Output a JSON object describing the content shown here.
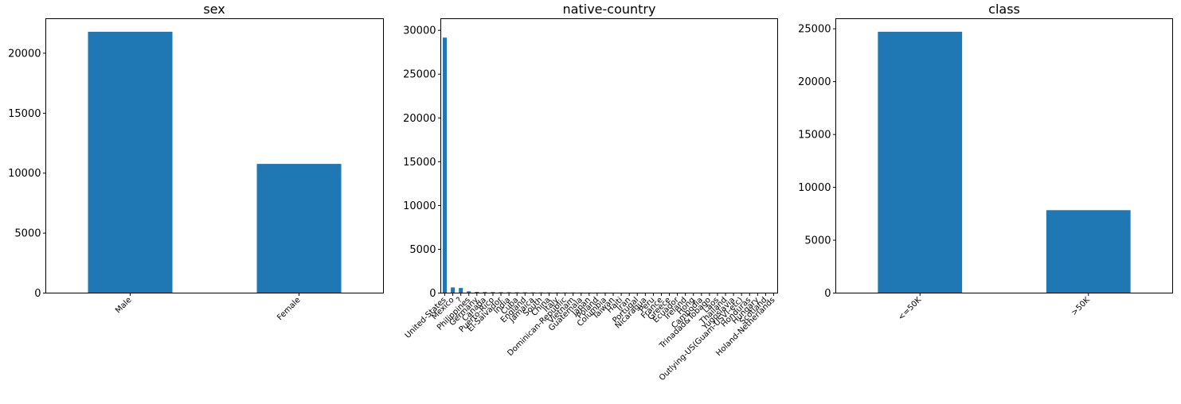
{
  "colors": {
    "bar": "#1f77b4",
    "axis": "#000000",
    "background": "#ffffff"
  },
  "chart_data": [
    {
      "type": "bar",
      "title": "sex",
      "xlabel": "",
      "ylabel": "",
      "categories": [
        "Male",
        "Female"
      ],
      "values": [
        21790,
        10771
      ],
      "ylim": [
        0,
        22880
      ],
      "yticks": [
        0,
        5000,
        10000,
        15000,
        20000
      ],
      "grid": false,
      "legend": "none"
    },
    {
      "type": "bar",
      "title": "native-country",
      "xlabel": "",
      "ylabel": "",
      "categories": [
        "United-States",
        "Mexico",
        "?",
        "Philippines",
        "Germany",
        "Canada",
        "Puerto-Rico",
        "El-Salvador",
        "India",
        "Cuba",
        "England",
        "Jamaica",
        "South",
        "China",
        "Italy",
        "Dominican-Republic",
        "Vietnam",
        "Guatemala",
        "Japan",
        "Poland",
        "Columbia",
        "Taiwan",
        "Haiti",
        "Iran",
        "Portugal",
        "Nicaragua",
        "Peru",
        "France",
        "Greece",
        "Ecuador",
        "Ireland",
        "Hong",
        "Cambodia",
        "Trinadad&Tobago",
        "Laos",
        "Thailand",
        "Yugoslavia",
        "Outlying-US(Guam-USVI-etc)",
        "Honduras",
        "Hungary",
        "Scotland",
        "Holand-Netherlands"
      ],
      "values": [
        29170,
        643,
        583,
        198,
        137,
        121,
        114,
        106,
        100,
        95,
        90,
        81,
        80,
        75,
        73,
        70,
        67,
        64,
        62,
        60,
        59,
        51,
        44,
        43,
        37,
        34,
        31,
        29,
        29,
        28,
        24,
        20,
        19,
        19,
        18,
        18,
        16,
        14,
        13,
        13,
        12,
        1
      ],
      "ylim": [
        0,
        31330
      ],
      "yticks": [
        0,
        5000,
        10000,
        15000,
        20000,
        25000,
        30000
      ],
      "grid": false,
      "legend": "none"
    },
    {
      "type": "bar",
      "title": "class",
      "xlabel": "",
      "ylabel": "",
      "categories": [
        "<=50K",
        ">50K"
      ],
      "values": [
        24720,
        7841
      ],
      "ylim": [
        0,
        25956
      ],
      "yticks": [
        0,
        5000,
        10000,
        15000,
        20000,
        25000
      ],
      "grid": false,
      "legend": "none"
    }
  ]
}
